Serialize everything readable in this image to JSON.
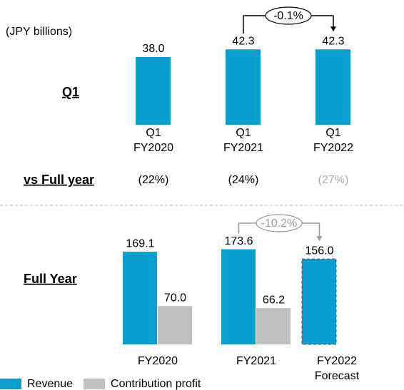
{
  "unit_label": "(JPY billions)",
  "chart_data": [
    {
      "type": "bar",
      "title": "Q1",
      "categories": [
        [
          "Q1",
          "FY2020"
        ],
        [
          "Q1",
          "FY2021"
        ],
        [
          "Q1",
          "FY2022"
        ]
      ],
      "series": [
        {
          "name": "Revenue",
          "color": "#0a9fd0",
          "values": [
            38.0,
            42.3,
            42.3
          ],
          "value_labels": [
            "38.0",
            "42.3",
            "42.3"
          ]
        }
      ],
      "ylim": [
        0,
        60
      ],
      "annotations": [
        {
          "text": "-0.1%",
          "from": 1,
          "to": 2,
          "color": "#000000"
        }
      ],
      "vs_full_year": {
        "label": "vs Full year",
        "values": [
          22,
          24,
          27
        ],
        "value_labels": [
          "(22%)",
          "(24%)",
          "(27%)"
        ],
        "colors": [
          "#000000",
          "#000000",
          "#aaaaaa"
        ]
      }
    },
    {
      "type": "grouped_bar",
      "title": "Full Year",
      "categories": [
        [
          "FY2020"
        ],
        [
          "FY2021"
        ],
        [
          "FY2022",
          "Forecast"
        ]
      ],
      "series": [
        {
          "name": "Revenue",
          "color": "#0a9fd0",
          "values": [
            169.1,
            173.6,
            156.0
          ],
          "value_labels": [
            "169.1",
            "173.6",
            "156.0"
          ],
          "dashed": [
            false,
            false,
            true
          ]
        },
        {
          "name": "Contribution profit",
          "color": "#c0c0c0",
          "values": [
            70.0,
            66.2,
            null
          ],
          "value_labels": [
            "70.0",
            "66.2",
            null
          ]
        }
      ],
      "ylim": [
        0,
        220
      ],
      "annotations": [
        {
          "text": "-10.2%",
          "from": 1,
          "to": 2,
          "color": "#999999"
        }
      ]
    }
  ]
}
